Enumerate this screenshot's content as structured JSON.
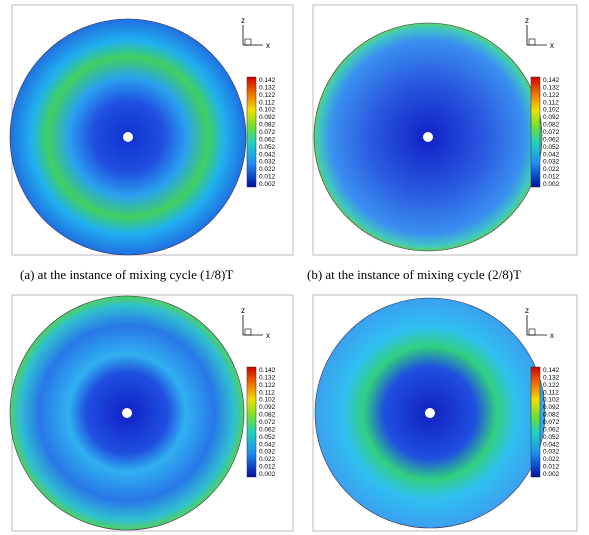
{
  "captions": [
    "(a) at the instance of mixing cycle (1/8)T",
    "(b)  at the instance of mixing cycle (2/8)T"
  ],
  "axis_labels": {
    "z": "z",
    "x": "x"
  },
  "colorbar_labels": [
    "0.142",
    "0.132",
    "0.122",
    "0.112",
    "0.102",
    "0.092",
    "0.082",
    "0.072",
    "0.062",
    "0.052",
    "0.042",
    "0.032",
    "0.022",
    "0.012",
    "0.002"
  ]
}
